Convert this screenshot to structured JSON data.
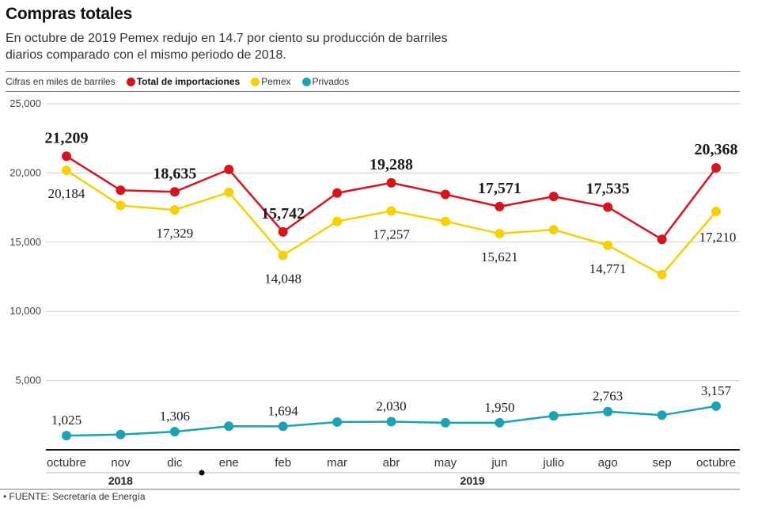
{
  "header": {
    "title": "Compras totales",
    "subtitle": "En octubre de 2019 Pemex redujo en 14.7 por ciento su producción de barriles diarios comparado con el mismo periodo de 2018."
  },
  "legend": {
    "units": "Cifras en miles de barriles",
    "items": [
      {
        "label": "Total de importaciones",
        "color": "#d7141e"
      },
      {
        "label": "Pemex",
        "color": "#f7d000"
      },
      {
        "label": "Privados",
        "color": "#1ba3b5"
      }
    ]
  },
  "source": "• FUENTE: Secretaría de Energía",
  "chart_data": {
    "type": "line",
    "title": "Compras totales",
    "ylabel": "Cifras en miles de barriles",
    "ylim": [
      0,
      25000
    ],
    "yticks": [
      5000,
      10000,
      15000,
      20000,
      25000
    ],
    "ytick_labels": [
      "5,000",
      "10,000",
      "15,000",
      "20,000",
      "25,000"
    ],
    "grid": true,
    "legend_position": "top-left",
    "categories": [
      "octubre",
      "nov",
      "dic",
      "ene",
      "feb",
      "mar",
      "abr",
      "may",
      "jun",
      "julio",
      "ago",
      "sep",
      "octubre"
    ],
    "year_groups": [
      {
        "label": "2018",
        "start": 0,
        "end": 2
      },
      {
        "label": "2019",
        "start": 3,
        "end": 12
      }
    ],
    "series": [
      {
        "name": "Total de importaciones",
        "color": "#d7141e",
        "values": [
          21209,
          18750,
          18635,
          20250,
          15742,
          18550,
          19288,
          18450,
          17571,
          18300,
          17535,
          15200,
          20368
        ],
        "labels": [
          "21,209",
          null,
          "18,635",
          null,
          "15,742",
          null,
          "19,288",
          null,
          "17,571",
          null,
          "17,535",
          null,
          "20,368"
        ]
      },
      {
        "name": "Pemex",
        "color": "#f7d000",
        "values": [
          20184,
          17650,
          17329,
          18600,
          14048,
          16500,
          17257,
          16500,
          15621,
          15900,
          14771,
          12650,
          17210
        ],
        "labels": [
          "20,184",
          null,
          "17,329",
          null,
          "14,048",
          null,
          "17,257",
          null,
          "15,621",
          null,
          "14,771",
          null,
          "17,210"
        ]
      },
      {
        "name": "Privados",
        "color": "#1ba3b5",
        "values": [
          1025,
          1100,
          1306,
          1700,
          1694,
          2000,
          2030,
          1950,
          1950,
          2450,
          2763,
          2500,
          3157
        ],
        "labels": [
          "1,025",
          null,
          "1,306",
          null,
          "1,694",
          null,
          "2,030",
          null,
          "1,950",
          null,
          "2,763",
          null,
          "3,157"
        ]
      }
    ]
  }
}
